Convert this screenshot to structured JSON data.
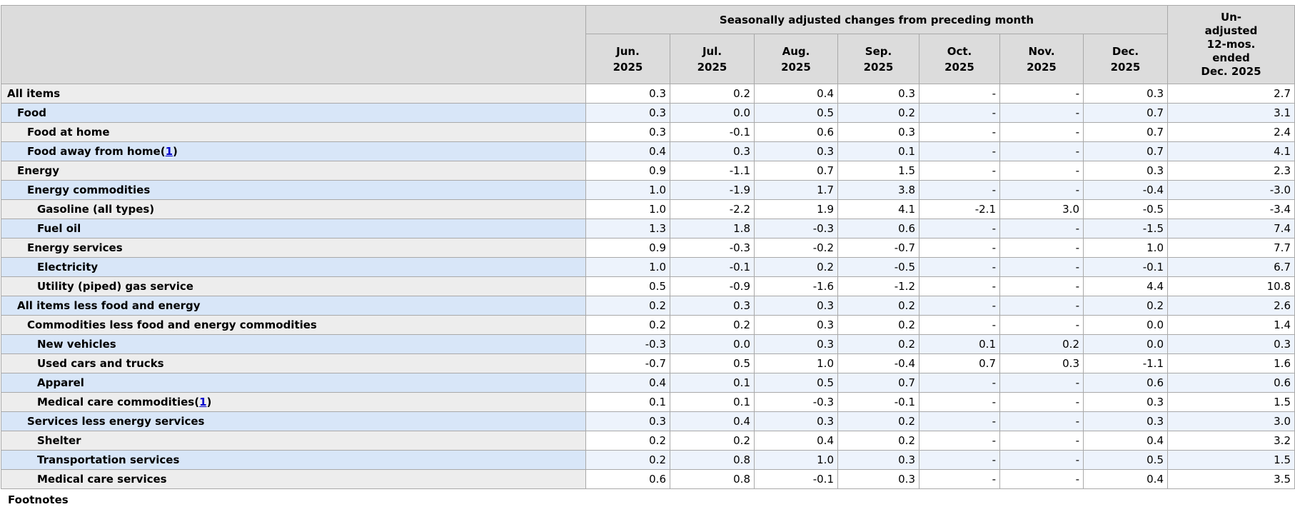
{
  "table": {
    "spanning_header": "Seasonally adjusted changes from preceding month",
    "unadjusted_header": "Un-\nadjusted\n12-mos.\nended\nDec. 2025",
    "month_headers": [
      "Jun.\n2025",
      "Jul.\n2025",
      "Aug.\n2025",
      "Sep.\n2025",
      "Oct.\n2025",
      "Nov.\n2025",
      "Dec.\n2025"
    ],
    "rows": [
      {
        "label": "All items",
        "indent": 0,
        "footnote": null,
        "values": [
          "0.3",
          "0.2",
          "0.4",
          "0.3",
          "-",
          "-",
          "0.3",
          "2.7"
        ]
      },
      {
        "label": "Food",
        "indent": 1,
        "footnote": null,
        "values": [
          "0.3",
          "0.0",
          "0.5",
          "0.2",
          "-",
          "-",
          "0.7",
          "3.1"
        ]
      },
      {
        "label": "Food at home",
        "indent": 2,
        "footnote": null,
        "values": [
          "0.3",
          "-0.1",
          "0.6",
          "0.3",
          "-",
          "-",
          "0.7",
          "2.4"
        ]
      },
      {
        "label": "Food away from home",
        "indent": 2,
        "footnote": "1",
        "values": [
          "0.4",
          "0.3",
          "0.3",
          "0.1",
          "-",
          "-",
          "0.7",
          "4.1"
        ]
      },
      {
        "label": "Energy",
        "indent": 1,
        "footnote": null,
        "values": [
          "0.9",
          "-1.1",
          "0.7",
          "1.5",
          "-",
          "-",
          "0.3",
          "2.3"
        ]
      },
      {
        "label": "Energy commodities",
        "indent": 2,
        "footnote": null,
        "values": [
          "1.0",
          "-1.9",
          "1.7",
          "3.8",
          "-",
          "-",
          "-0.4",
          "-3.0"
        ]
      },
      {
        "label": "Gasoline (all types)",
        "indent": 3,
        "footnote": null,
        "values": [
          "1.0",
          "-2.2",
          "1.9",
          "4.1",
          "-2.1",
          "3.0",
          "-0.5",
          "-3.4"
        ]
      },
      {
        "label": "Fuel oil",
        "indent": 3,
        "footnote": null,
        "values": [
          "1.3",
          "1.8",
          "-0.3",
          "0.6",
          "-",
          "-",
          "-1.5",
          "7.4"
        ]
      },
      {
        "label": "Energy services",
        "indent": 2,
        "footnote": null,
        "values": [
          "0.9",
          "-0.3",
          "-0.2",
          "-0.7",
          "-",
          "-",
          "1.0",
          "7.7"
        ]
      },
      {
        "label": "Electricity",
        "indent": 3,
        "footnote": null,
        "values": [
          "1.0",
          "-0.1",
          "0.2",
          "-0.5",
          "-",
          "-",
          "-0.1",
          "6.7"
        ]
      },
      {
        "label": "Utility (piped) gas service",
        "indent": 3,
        "footnote": null,
        "values": [
          "0.5",
          "-0.9",
          "-1.6",
          "-1.2",
          "-",
          "-",
          "4.4",
          "10.8"
        ]
      },
      {
        "label": "All items less food and energy",
        "indent": 1,
        "footnote": null,
        "values": [
          "0.2",
          "0.3",
          "0.3",
          "0.2",
          "-",
          "-",
          "0.2",
          "2.6"
        ]
      },
      {
        "label": "Commodities less food and energy commodities",
        "indent": 2,
        "footnote": null,
        "values": [
          "0.2",
          "0.2",
          "0.3",
          "0.2",
          "-",
          "-",
          "0.0",
          "1.4"
        ]
      },
      {
        "label": "New vehicles",
        "indent": 3,
        "footnote": null,
        "values": [
          "-0.3",
          "0.0",
          "0.3",
          "0.2",
          "0.1",
          "0.2",
          "0.0",
          "0.3"
        ]
      },
      {
        "label": "Used cars and trucks",
        "indent": 3,
        "footnote": null,
        "values": [
          "-0.7",
          "0.5",
          "1.0",
          "-0.4",
          "0.7",
          "0.3",
          "-1.1",
          "1.6"
        ]
      },
      {
        "label": "Apparel",
        "indent": 3,
        "footnote": null,
        "values": [
          "0.4",
          "0.1",
          "0.5",
          "0.7",
          "-",
          "-",
          "0.6",
          "0.6"
        ]
      },
      {
        "label": "Medical care commodities",
        "indent": 3,
        "footnote": "1",
        "values": [
          "0.1",
          "0.1",
          "-0.3",
          "-0.1",
          "-",
          "-",
          "0.3",
          "1.5"
        ]
      },
      {
        "label": "Services less energy services",
        "indent": 2,
        "footnote": null,
        "values": [
          "0.3",
          "0.4",
          "0.3",
          "0.2",
          "-",
          "-",
          "0.3",
          "3.0"
        ]
      },
      {
        "label": "Shelter",
        "indent": 3,
        "footnote": null,
        "values": [
          "0.2",
          "0.2",
          "0.4",
          "0.2",
          "-",
          "-",
          "0.4",
          "3.2"
        ]
      },
      {
        "label": "Transportation services",
        "indent": 3,
        "footnote": null,
        "values": [
          "0.2",
          "0.8",
          "1.0",
          "0.3",
          "-",
          "-",
          "0.5",
          "1.5"
        ]
      },
      {
        "label": "Medical care services",
        "indent": 3,
        "footnote": null,
        "values": [
          "0.6",
          "0.8",
          "-0.1",
          "0.3",
          "-",
          "-",
          "0.4",
          "3.5"
        ]
      }
    ]
  },
  "footer": {
    "footnotes_heading": "Footnotes"
  },
  "colors": {
    "border": "#a9a9a9",
    "header_bg": "#dcdcdc",
    "stub_gray": "#ededed",
    "stub_blue": "#d8e6f8",
    "data_gray": "#ffffff",
    "data_blue": "#edf3fc",
    "footnote_link": "#0000cc",
    "text": "#000000"
  }
}
